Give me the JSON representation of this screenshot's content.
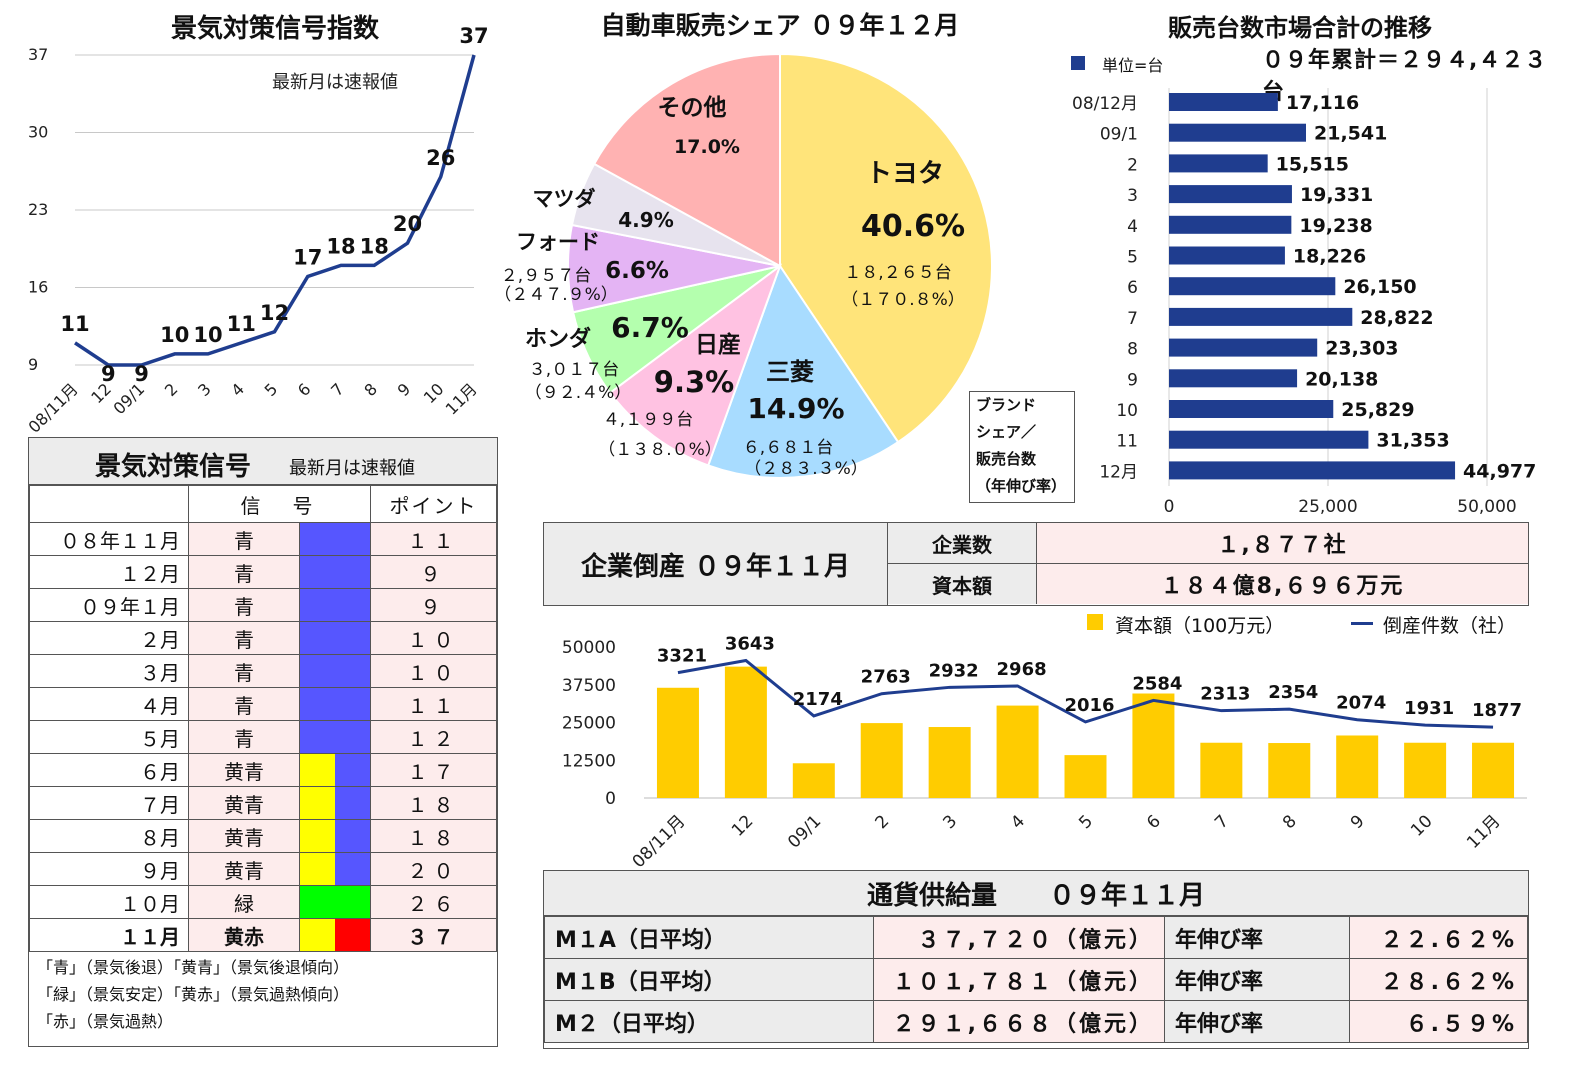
{
  "signal_index": {
    "title": "景気対策信号指数",
    "note": "最新月は速報値"
  },
  "auto_share": {
    "title": "自動車販売シェア ０９年１２月",
    "brand_note": [
      "ブランド",
      "シェア／",
      "販売台数",
      "（年伸び率）"
    ],
    "slices": [
      {
        "name": "トヨタ",
        "pct": "40.6%",
        "units": "１８,２６５台",
        "growth": "（１７０.８%）",
        "color": "#ffe47a"
      },
      {
        "name": "三菱",
        "pct": "14.9%",
        "units": "６,６８１台",
        "growth": "（２８３.３%）",
        "color": "#a8dcff"
      },
      {
        "name": "日産",
        "pct": "9.3%",
        "units": "４,１９９台",
        "growth": "（１３８.０%）",
        "color": "#ffc2e2"
      },
      {
        "name": "ホンダ",
        "pct": "6.7%",
        "units": "３,０１７台",
        "growth": "（９２.４%）",
        "color": "#b4ffae"
      },
      {
        "name": "フォード",
        "pct": "6.6%",
        "units": "２,９５７台",
        "growth": "（２４７.９%）",
        "color": "#e4b4f4"
      },
      {
        "name": "マツダ",
        "pct": "4.9%",
        "units": "",
        "growth": "",
        "color": "#e7e3ee"
      },
      {
        "name": "その他",
        "pct": "17.0%",
        "units": "",
        "growth": "",
        "color": "#ffb2b2"
      }
    ]
  },
  "sales_totals": {
    "title": "販売台数市場合計の推移",
    "unit_legend": "単位=台",
    "cumulative": "０９年累計＝２９４,４２３台"
  },
  "signal_table": {
    "title": "景気対策信号",
    "note": "最新月は速報値",
    "col_signal": "信　号",
    "col_points": "ポイント",
    "rows": [
      {
        "month": "０８年１１月",
        "signal": "青",
        "points": "１１",
        "colors": [
          "#5656ff"
        ]
      },
      {
        "month": "１２月",
        "signal": "青",
        "points": "９",
        "colors": [
          "#5656ff"
        ]
      },
      {
        "month": "０９年１月",
        "signal": "青",
        "points": "９",
        "colors": [
          "#5656ff"
        ]
      },
      {
        "month": "２月",
        "signal": "青",
        "points": "１０",
        "colors": [
          "#5656ff"
        ]
      },
      {
        "month": "３月",
        "signal": "青",
        "points": "１０",
        "colors": [
          "#5656ff"
        ]
      },
      {
        "month": "４月",
        "signal": "青",
        "points": "１１",
        "colors": [
          "#5656ff"
        ]
      },
      {
        "month": "５月",
        "signal": "青",
        "points": "１２",
        "colors": [
          "#5656ff"
        ]
      },
      {
        "month": "６月",
        "signal": "黄青",
        "points": "１７",
        "colors": [
          "#ffff00",
          "#5656ff"
        ]
      },
      {
        "month": "７月",
        "signal": "黄青",
        "points": "１８",
        "colors": [
          "#ffff00",
          "#5656ff"
        ]
      },
      {
        "month": "８月",
        "signal": "黄青",
        "points": "１８",
        "colors": [
          "#ffff00",
          "#5656ff"
        ]
      },
      {
        "month": "９月",
        "signal": "黄青",
        "points": "２０",
        "colors": [
          "#ffff00",
          "#5656ff"
        ]
      },
      {
        "month": "１０月",
        "signal": "緑",
        "points": "２６",
        "colors": [
          "#00ff00"
        ]
      },
      {
        "month": "１１月",
        "signal": "黄赤",
        "points": "３７",
        "colors": [
          "#ffff00",
          "#ff0000"
        ]
      }
    ],
    "legend": [
      "「青」（景気後退）「黄青」（景気後退傾向）",
      "「緑」（景気安定）「黄赤」（景気過熱傾向）",
      "「赤」（景気過熱）"
    ]
  },
  "bankruptcy": {
    "label": "企業倒産 ０９年１１月",
    "count_label": "企業数",
    "count_value": "１,８７７社",
    "capital_label": "資本額",
    "capital_value": "１８４億8,６９６万元",
    "legend_bar": "資本額（100万元）",
    "legend_line": "倒産件数（社）"
  },
  "money_supply": {
    "title": "通貨供給量　　０９年１１月",
    "rows": [
      {
        "name": "M１A（日平均）",
        "value": "３７,７２０（億元）",
        "rate_label": "年伸び率",
        "rate": "２２.６２%"
      },
      {
        "name": "M１B（日平均）",
        "value": "１０１,７８１（億元）",
        "rate_label": "年伸び率",
        "rate": "２８.６２%"
      },
      {
        "name": "M２（日平均）",
        "value": "２９１,６６８（億元）",
        "rate_label": "年伸び率",
        "rate": "６.５９%"
      }
    ]
  },
  "colors": {
    "navy": "#1f3d8f",
    "gold": "#ffcc00"
  },
  "chart_data": [
    {
      "type": "line",
      "title": "景気対策信号指数",
      "x": [
        "08/11月",
        "12",
        "09/1",
        "2",
        "3",
        "4",
        "5",
        "6",
        "7",
        "8",
        "9",
        "10",
        "11月"
      ],
      "y": [
        11,
        9,
        9,
        10,
        10,
        11,
        12,
        17,
        18,
        18,
        20,
        26,
        37
      ],
      "yticks": [
        9,
        16,
        23,
        30,
        37
      ],
      "ylim": [
        9,
        37
      ],
      "grid": true
    },
    {
      "type": "pie",
      "title": "自動車販売シェア ０９年１２月",
      "labels": [
        "トヨタ",
        "三菱",
        "日産",
        "ホンダ",
        "フォード",
        "マツダ",
        "その他"
      ],
      "values": [
        40.6,
        14.9,
        9.3,
        6.7,
        6.6,
        4.9,
        17.0
      ]
    },
    {
      "type": "bar",
      "orientation": "horizontal",
      "title": "販売台数市場合計の推移",
      "categories": [
        "08/12月",
        "09/1",
        "2",
        "3",
        "4",
        "5",
        "6",
        "7",
        "8",
        "9",
        "10",
        "11",
        "12月"
      ],
      "values": [
        17116,
        21541,
        15515,
        19331,
        19238,
        18226,
        26150,
        28822,
        23303,
        20138,
        25829,
        31353,
        44977
      ],
      "value_labels": [
        "17,116",
        "21,541",
        "15,515",
        "19,331",
        "19,238",
        "18,226",
        "26,150",
        "28,822",
        "23,303",
        "20,138",
        "25,829",
        "31,353",
        "44,977"
      ],
      "xticks": [
        "0",
        "25,000",
        "50,000"
      ],
      "xlim": [
        0,
        50000
      ],
      "legend": "単位=台"
    },
    {
      "type": "bar",
      "title": "",
      "categories": [
        "08/11月",
        "12",
        "09/1",
        "2",
        "3",
        "4",
        "5",
        "6",
        "7",
        "8",
        "9",
        "10",
        "11月"
      ],
      "series": [
        {
          "name": "資本額（100万元）",
          "type": "bar",
          "values": [
            36500,
            43500,
            11500,
            24800,
            23500,
            30600,
            14200,
            34600,
            18300,
            18200,
            20700,
            18300,
            18300
          ]
        },
        {
          "name": "倒産件数（社）",
          "type": "line",
          "values": [
            3321,
            3643,
            2174,
            2763,
            2932,
            2968,
            2016,
            2584,
            2313,
            2354,
            2074,
            1931,
            1877
          ]
        }
      ],
      "yticks": [
        "0",
        "12500",
        "25000",
        "37500",
        "50000"
      ],
      "ylim": [
        0,
        50000
      ],
      "line_range": [
        0,
        4000
      ]
    }
  ]
}
